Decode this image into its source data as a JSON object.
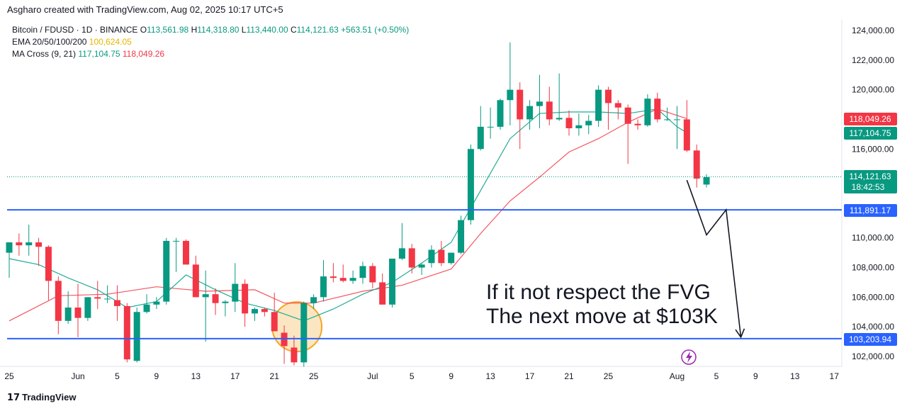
{
  "header": {
    "text": "Asgharo created with TradingView.com, Aug 02, 2025 10:17 UTC+5"
  },
  "legend": {
    "symbol": "Bitcoin / FDUSD · 1D · BINANCE",
    "o_label": "O",
    "o": "113,561.98",
    "h_label": "H",
    "h": "114,318.80",
    "l_label": "L",
    "l": "113,440.00",
    "c_label": "C",
    "c": "114,121.63",
    "change": "+563.51 (+0.50%)",
    "ema_label": "EMA 20/50/100/200",
    "ema_value": "100,624.05",
    "ma_label": "MA Cross (9, 21)",
    "ma_fast": "117,104.75",
    "ma_slow": "118,049.26"
  },
  "annotation": {
    "line1": "If it not respect the FVG",
    "line2": "The next move at $103K"
  },
  "price_labels": {
    "ma_slow": "118,049.26",
    "ma_fast": "117,104.75",
    "last": "114,121.63",
    "countdown": "18:42:53",
    "level_high": "111,891.17",
    "level_low": "103,203.94"
  },
  "footer": {
    "brand": "TradingView",
    "logo_glyph": "17"
  },
  "colors": {
    "up": "#089981",
    "down": "#f23645",
    "level": "#2962ff",
    "ma_fast": "#22ab94",
    "ma_slow": "#f23645",
    "fvg": "#f5a623"
  },
  "chart_data": {
    "type": "candlestick",
    "ylim": [
      101000,
      125000
    ],
    "y_ticks": [
      102000,
      104000,
      106000,
      108000,
      110000,
      112000,
      114000,
      116000,
      118000,
      120000,
      122000,
      124000
    ],
    "y_tick_labels": [
      "102,000.00",
      "104,000.00",
      "106,000.00",
      "108,000.00",
      "110,000.00",
      "112,000.00",
      "114,000.00",
      "116,000.00",
      "118,000.00",
      "120,000.00",
      "122,000.00",
      "124,000.00"
    ],
    "x_ticks": [
      {
        "day": 0,
        "label": "25"
      },
      {
        "day": 7,
        "label": "Jun"
      },
      {
        "day": 11,
        "label": "5"
      },
      {
        "day": 15,
        "label": "9"
      },
      {
        "day": 19,
        "label": "13"
      },
      {
        "day": 23,
        "label": "17"
      },
      {
        "day": 27,
        "label": "21"
      },
      {
        "day": 31,
        "label": "25"
      },
      {
        "day": 37,
        "label": "Jul"
      },
      {
        "day": 41,
        "label": "5"
      },
      {
        "day": 45,
        "label": "9"
      },
      {
        "day": 49,
        "label": "13"
      },
      {
        "day": 53,
        "label": "17"
      },
      {
        "day": 57,
        "label": "21"
      },
      {
        "day": 61,
        "label": "25"
      },
      {
        "day": 68,
        "label": "Aug"
      },
      {
        "day": 72,
        "label": "5"
      },
      {
        "day": 76,
        "label": "9"
      },
      {
        "day": 80,
        "label": "13"
      },
      {
        "day": 84,
        "label": "17"
      }
    ],
    "candles": [
      [
        109000,
        109700,
        107300,
        109700
      ],
      [
        109700,
        110300,
        108800,
        109500
      ],
      [
        109500,
        110900,
        108800,
        109700
      ],
      [
        109700,
        110000,
        108100,
        109400
      ],
      [
        109400,
        109500,
        105800,
        107100
      ],
      [
        107100,
        107400,
        103500,
        104400
      ],
      [
        104400,
        106400,
        104200,
        105300
      ],
      [
        105300,
        106900,
        103300,
        104600
      ],
      [
        104600,
        106000,
        104400,
        106000
      ],
      [
        106000,
        107100,
        105200,
        105900
      ],
      [
        105900,
        106800,
        105600,
        105900
      ],
      [
        105800,
        106800,
        104400,
        105400
      ],
      [
        105400,
        105600,
        101600,
        101800
      ],
      [
        101700,
        105300,
        101600,
        105000
      ],
      [
        105000,
        106200,
        104900,
        105500
      ],
      [
        105500,
        106000,
        105200,
        105700
      ],
      [
        105700,
        110000,
        105500,
        109800
      ],
      [
        109800,
        110000,
        107700,
        109800
      ],
      [
        109800,
        109900,
        108200,
        108200
      ],
      [
        108200,
        108800,
        106000,
        106000
      ],
      [
        106000,
        107800,
        103000,
        106200
      ],
      [
        106200,
        106600,
        104800,
        105600
      ],
      [
        105600,
        105800,
        104700,
        105700
      ],
      [
        105700,
        108300,
        105000,
        106900
      ],
      [
        106900,
        107200,
        104000,
        104900
      ],
      [
        104900,
        105300,
        104400,
        105200
      ],
      [
        105200,
        105300,
        104700,
        105000
      ],
      [
        105000,
        106300,
        103700,
        103700
      ],
      [
        103600,
        104100,
        101500,
        102700
      ],
      [
        102600,
        103400,
        101400,
        101600
      ],
      [
        101600,
        105700,
        101300,
        105600
      ],
      [
        105600,
        106200,
        105200,
        106000
      ],
      [
        106000,
        108500,
        105700,
        107400
      ],
      [
        107400,
        108300,
        107000,
        107300
      ],
      [
        107300,
        108200,
        107000,
        107100
      ],
      [
        107100,
        107800,
        106900,
        107300
      ],
      [
        107300,
        108400,
        106900,
        108100
      ],
      [
        108100,
        108300,
        106600,
        107000
      ],
      [
        107000,
        107600,
        105500,
        105500
      ],
      [
        105500,
        108500,
        105300,
        108600
      ],
      [
        108600,
        111000,
        108500,
        109300
      ],
      [
        109300,
        109600,
        107600,
        108000
      ],
      [
        108000,
        108300,
        107500,
        108200
      ],
      [
        108300,
        109500,
        108000,
        109200
      ],
      [
        109200,
        109800,
        108100,
        108300
      ],
      [
        108300,
        109000,
        108200,
        109000
      ],
      [
        109000,
        111500,
        108900,
        111200
      ],
      [
        111200,
        116300,
        110900,
        116000
      ],
      [
        116000,
        118900,
        115900,
        117500
      ],
      [
        117500,
        118800,
        116700,
        117500
      ],
      [
        117500,
        119400,
        117300,
        119300
      ],
      [
        119300,
        123200,
        117600,
        120000
      ],
      [
        120000,
        120500,
        116000,
        118000
      ],
      [
        118000,
        119300,
        117300,
        118900
      ],
      [
        118900,
        121000,
        117400,
        119200
      ],
      [
        119200,
        120200,
        117600,
        118000
      ],
      [
        118000,
        121100,
        117900,
        118100
      ],
      [
        118100,
        118600,
        116900,
        117400
      ],
      [
        117400,
        118400,
        116900,
        117600
      ],
      [
        117600,
        118300,
        117000,
        117900
      ],
      [
        117900,
        120300,
        117500,
        120000
      ],
      [
        120000,
        120200,
        117300,
        119100
      ],
      [
        119100,
        119300,
        118000,
        118800
      ],
      [
        118800,
        119000,
        115000,
        117700
      ],
      [
        117700,
        118000,
        117300,
        117600
      ],
      [
        117600,
        119700,
        117500,
        119400
      ],
      [
        119400,
        119800,
        117800,
        118000
      ],
      [
        118000,
        118800,
        117900,
        118000
      ],
      [
        118000,
        118900,
        116000,
        118000
      ],
      [
        118000,
        119300,
        115800,
        115900
      ],
      [
        115900,
        116300,
        113400,
        114000
      ],
      [
        113600,
        114300,
        113400,
        114100
      ]
    ],
    "ma_fast": [
      [
        0,
        108600
      ],
      [
        3,
        108200
      ],
      [
        6,
        107300
      ],
      [
        9,
        106500
      ],
      [
        12,
        105300
      ],
      [
        15,
        105700
      ],
      [
        18,
        107500
      ],
      [
        21,
        106500
      ],
      [
        24,
        105600
      ],
      [
        27,
        105100
      ],
      [
        30,
        104400
      ],
      [
        33,
        105200
      ],
      [
        36,
        106200
      ],
      [
        39,
        107000
      ],
      [
        42,
        108300
      ],
      [
        45,
        109700
      ],
      [
        48,
        113200
      ],
      [
        51,
        116700
      ],
      [
        54,
        118400
      ],
      [
        57,
        118500
      ],
      [
        60,
        118500
      ],
      [
        63,
        118400
      ],
      [
        66,
        118700
      ],
      [
        68,
        117500
      ],
      [
        69,
        117100
      ]
    ],
    "ma_slow": [
      [
        0,
        104400
      ],
      [
        5,
        106100
      ],
      [
        10,
        106200
      ],
      [
        15,
        106700
      ],
      [
        20,
        106400
      ],
      [
        25,
        106500
      ],
      [
        28,
        105600
      ],
      [
        31,
        105600
      ],
      [
        36,
        106400
      ],
      [
        40,
        106800
      ],
      [
        45,
        107900
      ],
      [
        48,
        110300
      ],
      [
        51,
        112500
      ],
      [
        54,
        114100
      ],
      [
        57,
        115800
      ],
      [
        60,
        116700
      ],
      [
        63,
        117800
      ],
      [
        66,
        118700
      ],
      [
        69,
        118050
      ]
    ],
    "level_high": 111891.17,
    "level_low": 103203.94,
    "last_price": 114121.63,
    "projection": [
      [
        69,
        113900
      ],
      [
        71,
        110200
      ],
      [
        73,
        111900
      ],
      [
        74.5,
        103300
      ]
    ]
  }
}
